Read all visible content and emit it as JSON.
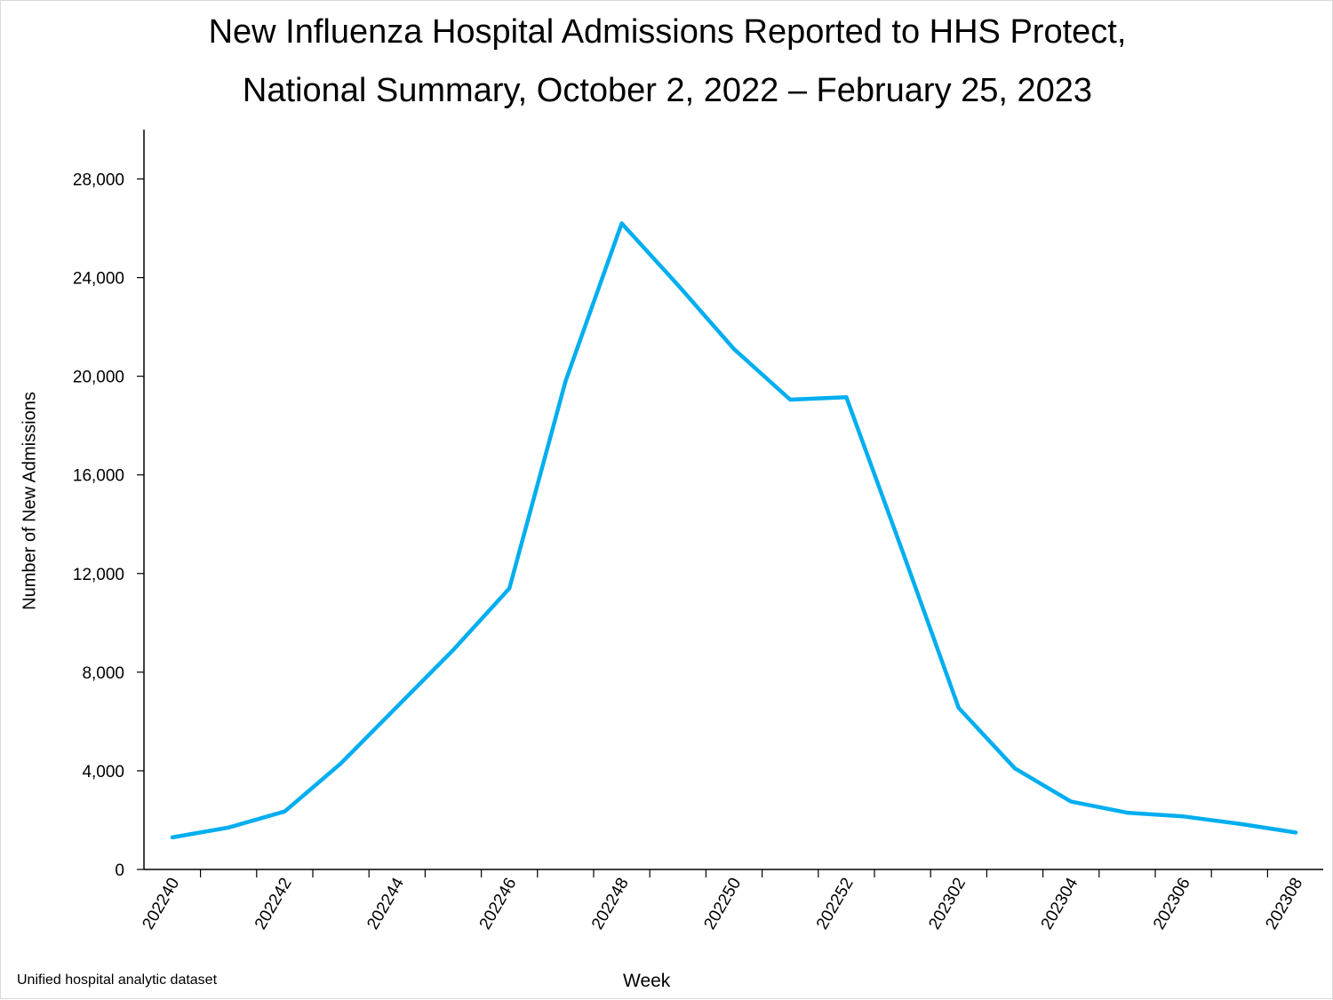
{
  "chart_data": {
    "type": "line",
    "title_line1": "New Influenza Hospital Admissions Reported to HHS Protect,",
    "title_line2": "National Summary, October 2, 2022 – February 25, 2023",
    "xlabel": "Week",
    "ylabel": "Number of New Admissions",
    "source": "Unified hospital analytic dataset",
    "ylim": [
      0,
      30000
    ],
    "yticks": [
      0,
      4000,
      8000,
      12000,
      16000,
      20000,
      24000,
      28000
    ],
    "ytick_labels": [
      "0",
      "4,000",
      "8,000",
      "12,000",
      "16,000",
      "20,000",
      "24,000",
      "28,000"
    ],
    "x": [
      "202240",
      "202241",
      "202242",
      "202243",
      "202244",
      "202245",
      "202246",
      "202247",
      "202248",
      "202249",
      "202250",
      "202251",
      "202252",
      "202301",
      "202302",
      "202303",
      "202304",
      "202305",
      "202306",
      "202307",
      "202308"
    ],
    "xtick_labels": [
      "202240",
      "202242",
      "202244",
      "202246",
      "202248",
      "202250",
      "202252",
      "202302",
      "202304",
      "202306",
      "202308"
    ],
    "series": [
      {
        "color": "#00aeef",
        "values": [
          1300,
          1700,
          2350,
          4300,
          6600,
          8900,
          11400,
          19800,
          26200,
          23700,
          21100,
          19050,
          19150,
          12900,
          6550,
          4100,
          2750,
          2300,
          2150,
          1850,
          1500
        ]
      }
    ],
    "grid": false
  }
}
